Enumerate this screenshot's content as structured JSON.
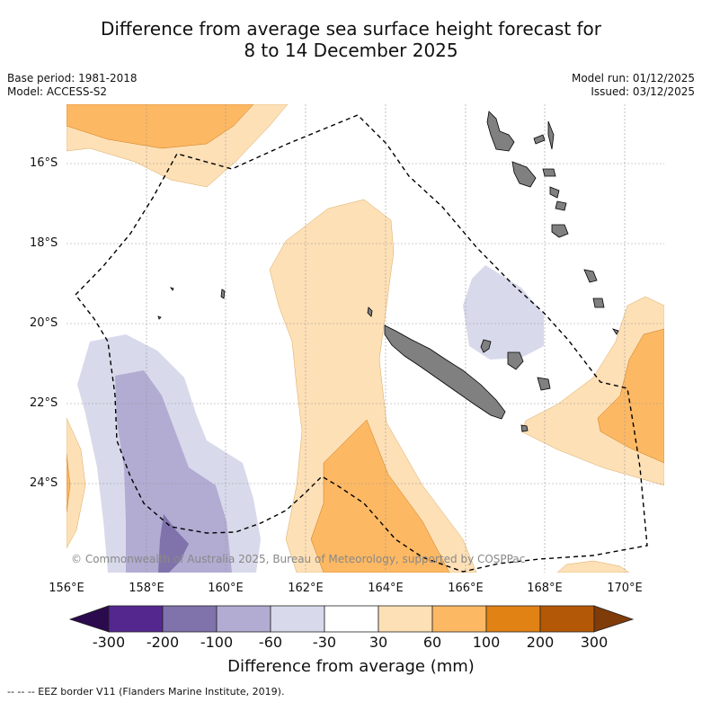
{
  "title": {
    "line1": "Difference from average sea surface height forecast for",
    "line2": "8 to 14 December 2025"
  },
  "meta": {
    "base_period": "Base period: 1981-2018",
    "model": "Model: ACCESS-S2",
    "model_run": "Model run: 01/12/2025",
    "issued": "Issued: 03/12/2025"
  },
  "map": {
    "lat_labels": [
      "16°S",
      "18°S",
      "20°S",
      "22°S",
      "24°S"
    ],
    "lon_labels": [
      "156°E",
      "158°E",
      "160°E",
      "162°E",
      "164°E",
      "166°E",
      "168°E",
      "170°E"
    ],
    "copyright": "© Commonwealth of Australia 2025, Bureau of Meteorology, supported by COSPPac",
    "footnote": "--  --  -- EEZ border V11 (Flanders Marine Institute, 2019)."
  },
  "colorbar": {
    "title": "Difference from average (mm)",
    "tick_labels": [
      "-300",
      "-200",
      "-100",
      "-60",
      "-30",
      "30",
      "60",
      "100",
      "200",
      "300"
    ],
    "colors": {
      "below_min": "#2b0a4e",
      "m300_m200": "#54278f",
      "m200_m100": "#8073ac",
      "m100_m60": "#b2abd2",
      "m60_m30": "#d8daeb",
      "neutral": "#ffffff",
      "p30_p60": "#fee0b6",
      "p60_p100": "#fdb863",
      "p100_p200": "#e08214",
      "p200_p300": "#b35806",
      "above_max": "#7f3b08"
    }
  },
  "colors": {
    "land": "#808080",
    "grid": "#999999",
    "eez": "#000000"
  }
}
